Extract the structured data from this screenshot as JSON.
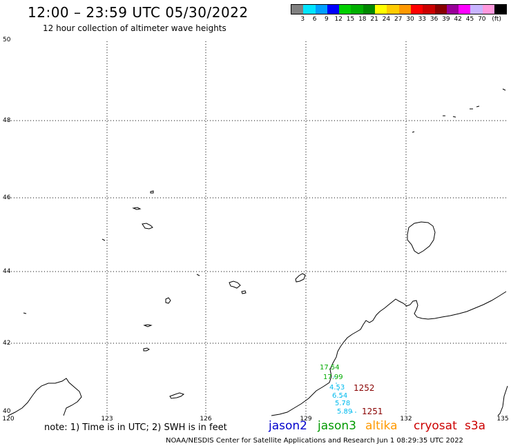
{
  "header": {
    "title": "12:00 – 23:59 UTC 05/30/2022",
    "subtitle": "12 hour collection of altimeter wave heights"
  },
  "color_scale": {
    "unit": "(ft)",
    "colors": [
      "#808080",
      "#00e5ff",
      "#00a0ff",
      "#0000ff",
      "#00d000",
      "#00b000",
      "#008800",
      "#ffff00",
      "#ffcc00",
      "#ff9900",
      "#ff0000",
      "#cc0000",
      "#880000",
      "#990099",
      "#ff00ff",
      "#c8b4ff",
      "#ff99dd",
      "#000000"
    ],
    "labels": [
      "3",
      "6",
      "9",
      "12",
      "15",
      "18",
      "21",
      "24",
      "27",
      "30",
      "33",
      "36",
      "39",
      "42",
      "45",
      "70"
    ]
  },
  "axes": {
    "lat_labels": [
      "50",
      "48",
      "46",
      "44",
      "42",
      "40"
    ],
    "lon_labels": [
      "120",
      "123",
      "126",
      "129",
      "132",
      "135"
    ]
  },
  "observations": [
    {
      "value": "17.54",
      "color": "#00aa00"
    },
    {
      "value": "17.99",
      "color": "#00aa00"
    },
    {
      "value": "4.53",
      "color": "#00bbee"
    },
    {
      "value": "6.54",
      "color": "#00bbee"
    },
    {
      "value": "5.78",
      "color": "#00bbee"
    },
    {
      "value": "5.89",
      "color": "#00bbee"
    }
  ],
  "tracks": [
    {
      "label": "1252",
      "color": "#880000"
    },
    {
      "label": "1251",
      "color": "#880000"
    }
  ],
  "note": "note: 1) Time is in UTC; 2) SWH is in feet",
  "missions": [
    {
      "name": "jason2",
      "color": "#0000cc"
    },
    {
      "name": "jason3",
      "color": "#009900"
    },
    {
      "name": "altika",
      "color": "#ff9900"
    },
    {
      "name": "cryosat",
      "color": "#cc0000"
    },
    {
      "name": "s3a",
      "color": "#cc0000"
    }
  ],
  "footer": "NOAA/NESDIS Center for Satellite Applications and Research   Jun  1 08:29:35 UTC 2022"
}
